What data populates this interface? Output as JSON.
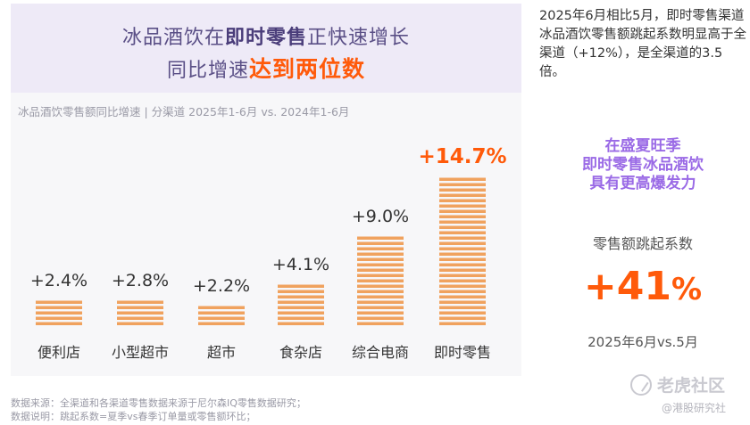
{
  "headline": {
    "line1_pre": "冰品酒饮在",
    "line1_bold": "即时零售",
    "line1_post": "正快速增长",
    "line2_pre": "同比增速",
    "line2_highlight": "达到两位数"
  },
  "chart_data": {
    "type": "bar",
    "title": "",
    "subtitle": "冰品酒饮零售额同比增速 | 分渠道 2025年1-6月 vs. 2024年1-6月",
    "categories": [
      "便利店",
      "小型超市",
      "超市",
      "食杂店",
      "综合电商",
      "即时零售"
    ],
    "values": [
      2.4,
      2.8,
      2.2,
      4.1,
      9.0,
      14.7
    ],
    "data_labels": [
      "+2.4%",
      "+2.8%",
      "+2.2%",
      "+4.1%",
      "+9.0%",
      "+14.7%"
    ],
    "highlight_category": "即时零售",
    "xlabel": "",
    "ylabel": "",
    "ylim": [
      0,
      16
    ],
    "grid": false,
    "bar_color": "#f0a25e",
    "highlight_color": "#ff5a0a"
  },
  "side": {
    "summary": "2025年6月相比5月，即时零售渠道冰品酒饮零售额跳起系数明显高于全渠道（+12%），是全渠道的3.5倍。",
    "callout_lines": [
      "在盛夏旺季",
      "即时零售冰品酒饮",
      "具有更高爆发力"
    ],
    "metric_label": "零售额跳起系数",
    "metric_value": "+41",
    "metric_unit": "%",
    "metric_period": "2025年6月vs.5月"
  },
  "watermark": {
    "brand": "老虎社区",
    "sub": "@港股研究社"
  },
  "footnotes": {
    "source": "数据来源：全渠道和各渠道零售数据来源于尼尔森IQ零售数据研究；",
    "note": "数据说明：跳起系数=夏季vs春季订单量或零售额环比；"
  }
}
